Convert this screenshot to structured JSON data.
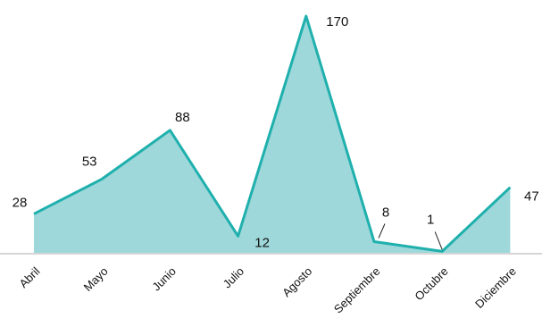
{
  "chart_data": {
    "type": "area",
    "categories": [
      "Abril",
      "Mayo",
      "Junio",
      "Julio",
      "Agosto",
      "Septiembre",
      "Octubre",
      "Diciembre"
    ],
    "series": [
      {
        "values": [
          28,
          53,
          88,
          12,
          170,
          8,
          1,
          47
        ]
      }
    ],
    "data_labels": [
      "28",
      "53",
      "88",
      "12",
      "170",
      "8",
      "1",
      "47"
    ],
    "ylim": [
      0,
      170
    ],
    "grid": false,
    "legend": "none",
    "colors": {
      "line": "#1fb0ad",
      "fill": "#9ed8da",
      "axis": "#c8c8c8",
      "text": "#111111"
    }
  }
}
